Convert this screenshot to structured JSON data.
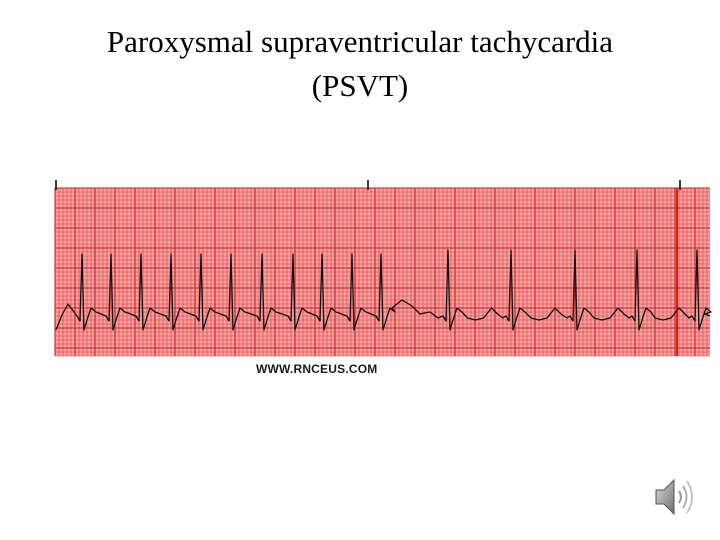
{
  "slide": {
    "title_line1": "Paroxysmal supraventricular tachycardia",
    "title_line2": "(PSVT)"
  },
  "ecg_strip": {
    "grid_background": "#f5a3a3",
    "grid_minor_color": "#e33c3c",
    "grid_major_color": "#c81e1e",
    "trace_color": "#111111",
    "credit": "WWW.RNCEUS.COM"
  },
  "icons": {
    "audio": "speaker-icon"
  }
}
